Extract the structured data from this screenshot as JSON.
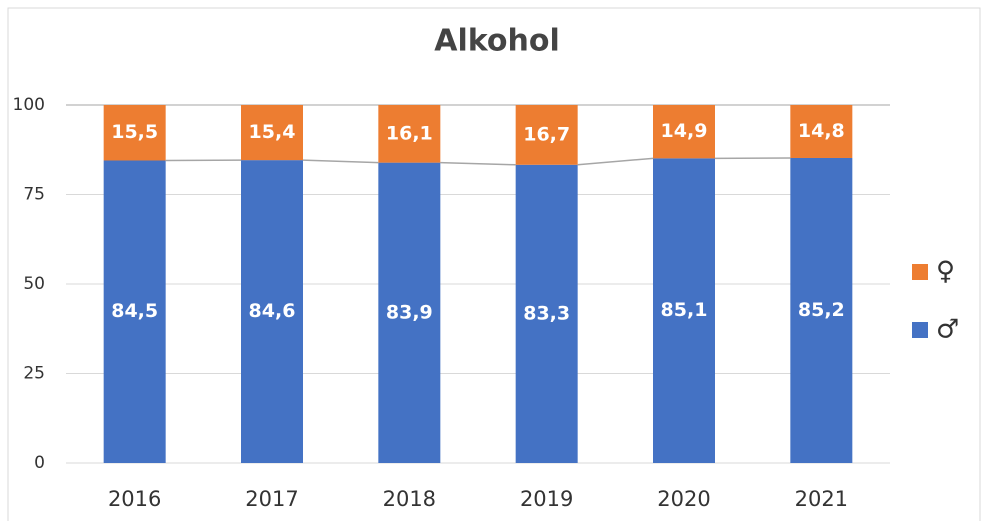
{
  "chart_data": {
    "type": "stacked_bar",
    "title": "Alkohol",
    "categories": [
      "2016",
      "2017",
      "2018",
      "2019",
      "2020",
      "2021"
    ],
    "series": [
      {
        "name": "♂",
        "color": "#4472c4",
        "values": [
          84.5,
          84.6,
          83.9,
          83.3,
          85.1,
          85.2
        ],
        "value_labels": [
          "84,5",
          "84,6",
          "83,9",
          "83,3",
          "85,1",
          "85,2"
        ]
      },
      {
        "name": "♀",
        "color": "#ed7d31",
        "values": [
          15.5,
          15.4,
          16.1,
          16.7,
          14.9,
          14.8
        ],
        "value_labels": [
          "15,5",
          "15,4",
          "16,1",
          "16,7",
          "14,9",
          "14,8"
        ]
      }
    ],
    "ylim": [
      0,
      100
    ],
    "yticks": [
      0,
      25,
      50,
      75,
      100
    ],
    "grid": true,
    "legend": "right"
  }
}
